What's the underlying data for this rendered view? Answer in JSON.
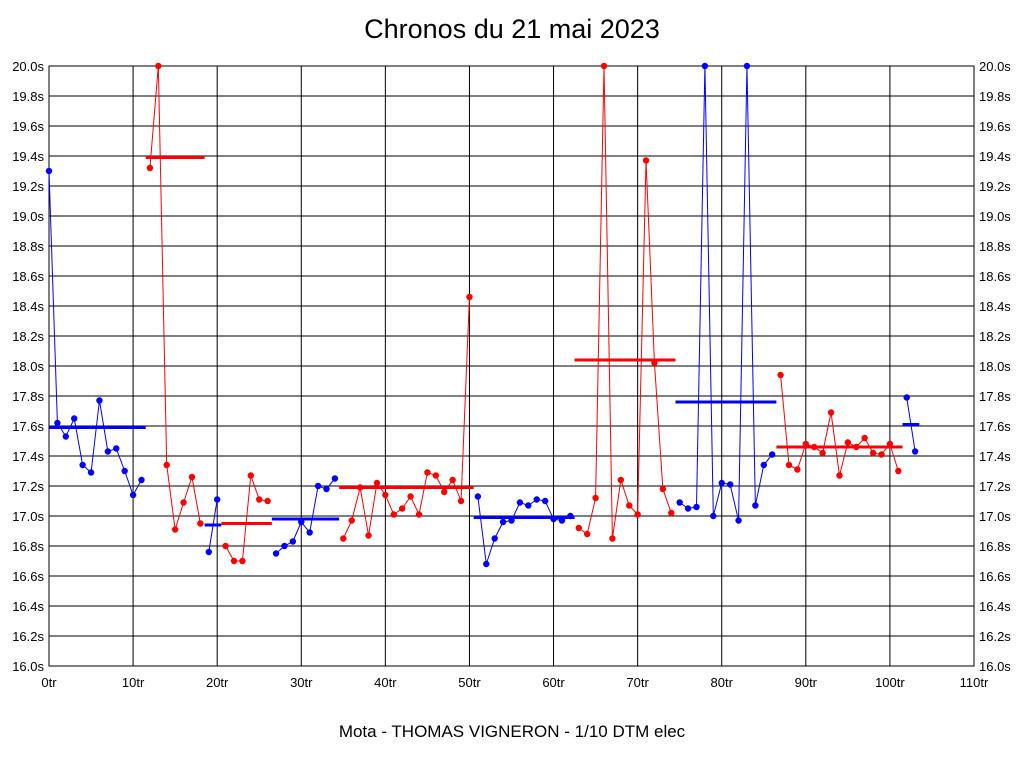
{
  "chart_data": {
    "type": "line",
    "title": "Chronos du 21 mai 2023",
    "xlabel": "Mota - THOMAS VIGNERON - 1/10 DTM elec",
    "ylabel": "",
    "xlim": [
      0,
      110
    ],
    "ylim": [
      16.0,
      20.0
    ],
    "x_ticks": [
      "0tr",
      "10tr",
      "20tr",
      "30tr",
      "40tr",
      "50tr",
      "60tr",
      "70tr",
      "80tr",
      "90tr",
      "100tr",
      "110tr"
    ],
    "y_ticks": [
      "16.0s",
      "16.2s",
      "16.4s",
      "16.6s",
      "16.8s",
      "17.0s",
      "17.2s",
      "17.4s",
      "17.6s",
      "17.8s",
      "18.0s",
      "18.2s",
      "18.4s",
      "18.6s",
      "18.8s",
      "19.0s",
      "19.2s",
      "19.4s",
      "19.6s",
      "19.8s",
      "20.0s"
    ],
    "grid": true,
    "colors": {
      "blue": "#0000ff",
      "red": "#ff0000"
    },
    "segments": [
      {
        "color": "blue",
        "x": [
          0,
          1,
          2,
          3,
          4,
          5,
          6,
          7,
          8,
          9,
          10,
          11
        ],
        "y": [
          19.3,
          17.62,
          17.53,
          17.65,
          17.34,
          17.29,
          17.77,
          17.43,
          17.45,
          17.3,
          17.14,
          17.24
        ],
        "mean": 17.59
      },
      {
        "color": "red",
        "x": [
          12,
          13,
          14,
          15,
          16,
          17,
          18
        ],
        "y": [
          19.32,
          20.0,
          17.34,
          16.91,
          17.09,
          17.26,
          16.95
        ],
        "mean": 19.39
      },
      {
        "color": "blue",
        "x": [
          19,
          20
        ],
        "y": [
          16.76,
          17.11
        ],
        "mean": 16.94
      },
      {
        "color": "red",
        "x": [
          21,
          22,
          23,
          24,
          25,
          26
        ],
        "y": [
          16.8,
          16.7,
          16.7,
          17.27,
          17.11,
          17.1
        ],
        "mean": 16.95
      },
      {
        "color": "blue",
        "x": [
          27,
          28,
          29,
          30,
          31,
          32,
          33,
          34
        ],
        "y": [
          16.75,
          16.8,
          16.83,
          16.96,
          16.89,
          17.2,
          17.18,
          17.25
        ],
        "mean": 16.98
      },
      {
        "color": "red",
        "x": [
          35,
          36,
          37,
          38,
          39,
          40,
          41,
          42,
          43,
          44,
          45,
          46,
          47,
          48,
          49,
          50
        ],
        "y": [
          16.85,
          16.97,
          17.19,
          16.87,
          17.22,
          17.14,
          17.01,
          17.05,
          17.13,
          17.01,
          17.29,
          17.27,
          17.16,
          17.24,
          17.1,
          18.46
        ],
        "mean": 17.19
      },
      {
        "color": "blue",
        "x": [
          51,
          52,
          53,
          54,
          55,
          56,
          57,
          58,
          59,
          60,
          61,
          62
        ],
        "y": [
          17.13,
          16.68,
          16.85,
          16.96,
          16.97,
          17.09,
          17.07,
          17.11,
          17.1,
          16.98,
          16.97,
          17.0
        ],
        "mean": 16.99
      },
      {
        "color": "red",
        "x": [
          63,
          64,
          65,
          66,
          67,
          68,
          69,
          70,
          71,
          72,
          73,
          74
        ],
        "y": [
          16.92,
          16.88,
          17.12,
          20.0,
          16.85,
          17.24,
          17.07,
          17.01,
          19.37,
          18.02,
          17.18,
          17.02
        ],
        "mean": 18.04
      },
      {
        "color": "blue",
        "x": [
          75,
          76,
          77,
          78,
          79,
          80,
          81,
          82,
          83,
          84,
          85,
          86
        ],
        "y": [
          17.09,
          17.05,
          17.06,
          20.0,
          17.0,
          17.22,
          17.21,
          16.97,
          20.0,
          17.07,
          17.34,
          17.41
        ],
        "mean": 17.76
      },
      {
        "color": "red",
        "x": [
          87,
          88,
          89,
          90,
          91,
          92,
          93,
          94,
          95,
          96,
          97,
          98,
          99,
          100,
          101
        ],
        "y": [
          17.94,
          17.34,
          17.31,
          17.48,
          17.46,
          17.42,
          17.69,
          17.27,
          17.49,
          17.46,
          17.52,
          17.42,
          17.41,
          17.48,
          17.3
        ],
        "mean": 17.46
      },
      {
        "color": "blue",
        "x": [
          102,
          103
        ],
        "y": [
          17.79,
          17.43
        ],
        "mean": 17.61
      }
    ]
  }
}
